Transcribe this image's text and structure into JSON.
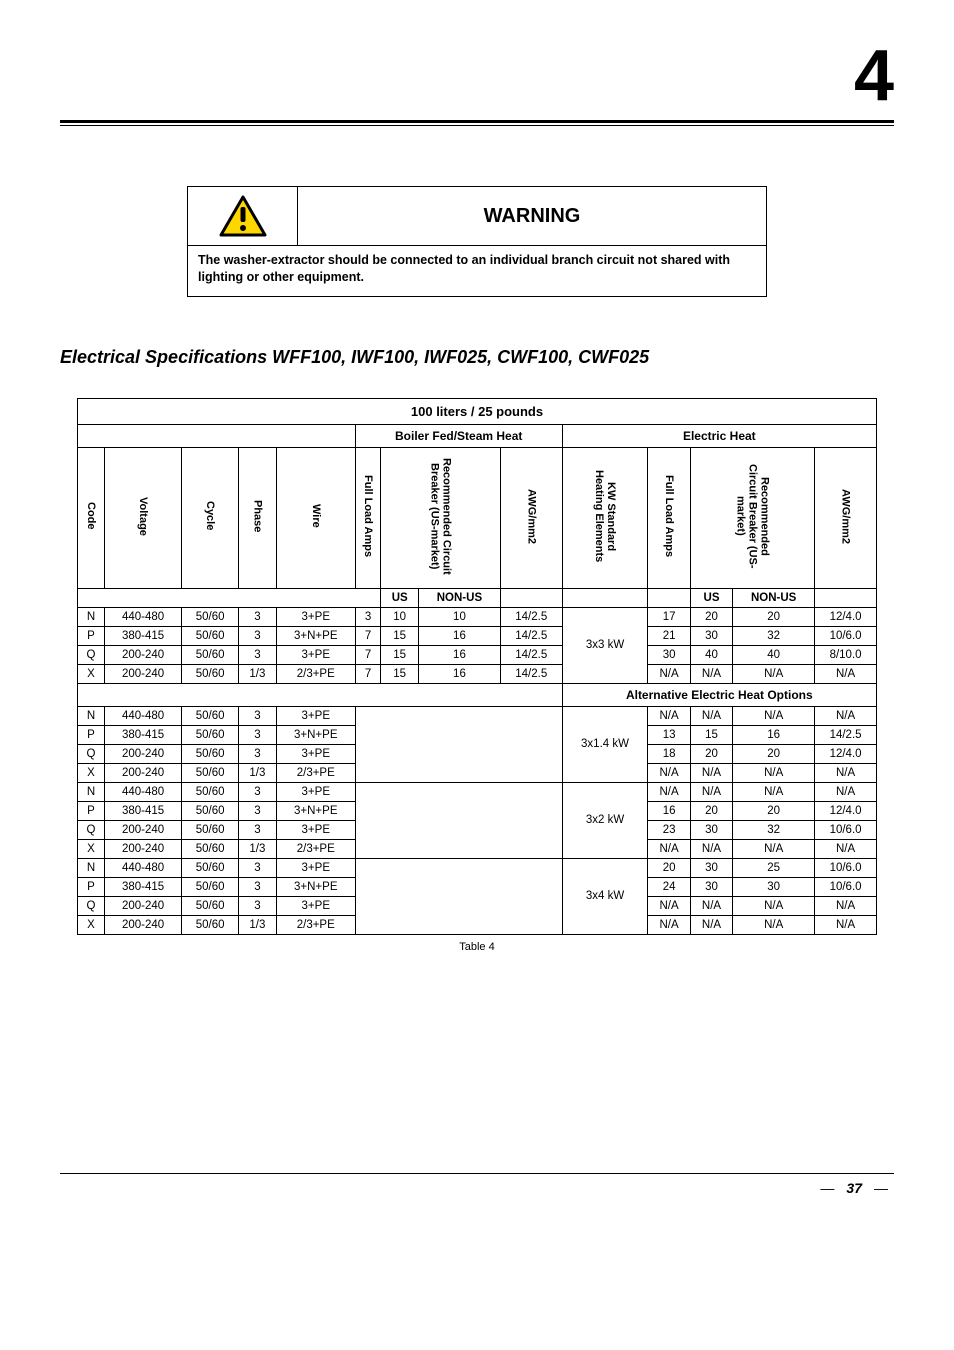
{
  "chapter_number": "4",
  "warning": {
    "title": "WARNING",
    "body": "The washer-extractor should be connected to an individual branch circuit not shared with lighting or other equipment.",
    "icon": {
      "triangle_fill": "#ffd700",
      "triangle_stroke": "#000000",
      "bang_color": "#000000"
    }
  },
  "section_title": "Electrical Specifications WFF100, IWF100, IWF025, CWF100, CWF025",
  "table": {
    "title": "100 liters / 25 pounds",
    "group_headers": [
      "Boiler Fed/Steam Heat",
      "Electric Heat"
    ],
    "col_headers": {
      "code": "Code",
      "voltage": "Voltage",
      "cycle": "Cycle",
      "phase": "Phase",
      "wire": "Wire",
      "full_load_amps": "Full Load Amps",
      "rec_circuit_bkr_us": "Recommended Circuit\nBreaker (US-market)",
      "awg_mm2": "AWG/mm2",
      "kw_std_heating": "KW Standard\nHeating Elements",
      "rec_bkr_us_market": "Recommended\nCircuit Breaker (US-\nmarket)"
    },
    "us_nonus": {
      "us": "US",
      "nonus": "NON-US"
    },
    "alt_row_label": "Alternative Electric Heat Options",
    "groups": [
      {
        "kw": "3x3 kW",
        "rows": [
          {
            "code": "N",
            "voltage": "440-480",
            "cycle": "50/60",
            "phase": "3",
            "wire": "3+PE",
            "fla_b": "3",
            "us_b": "10",
            "nonus_b": "10",
            "awg_b": "14/2.5",
            "fla_e": "17",
            "us_e": "20",
            "nonus_e": "20",
            "awg_e": "12/4.0"
          },
          {
            "code": "P",
            "voltage": "380-415",
            "cycle": "50/60",
            "phase": "3",
            "wire": "3+N+PE",
            "fla_b": "7",
            "us_b": "15",
            "nonus_b": "16",
            "awg_b": "14/2.5",
            "fla_e": "21",
            "us_e": "30",
            "nonus_e": "32",
            "awg_e": "10/6.0"
          },
          {
            "code": "Q",
            "voltage": "200-240",
            "cycle": "50/60",
            "phase": "3",
            "wire": "3+PE",
            "fla_b": "7",
            "us_b": "15",
            "nonus_b": "16",
            "awg_b": "14/2.5",
            "fla_e": "30",
            "us_e": "40",
            "nonus_e": "40",
            "awg_e": "8/10.0"
          },
          {
            "code": "X",
            "voltage": "200-240",
            "cycle": "50/60",
            "phase": "1/3",
            "wire": "2/3+PE",
            "fla_b": "7",
            "us_b": "15",
            "nonus_b": "16",
            "awg_b": "14/2.5",
            "fla_e": "N/A",
            "us_e": "N/A",
            "nonus_e": "N/A",
            "awg_e": "N/A"
          }
        ]
      },
      {
        "kw": "3x1.4 kW",
        "rows": [
          {
            "code": "N",
            "voltage": "440-480",
            "cycle": "50/60",
            "phase": "3",
            "wire": "3+PE",
            "fla_e": "N/A",
            "us_e": "N/A",
            "nonus_e": "N/A",
            "awg_e": "N/A"
          },
          {
            "code": "P",
            "voltage": "380-415",
            "cycle": "50/60",
            "phase": "3",
            "wire": "3+N+PE",
            "fla_e": "13",
            "us_e": "15",
            "nonus_e": "16",
            "awg_e": "14/2.5"
          },
          {
            "code": "Q",
            "voltage": "200-240",
            "cycle": "50/60",
            "phase": "3",
            "wire": "3+PE",
            "fla_e": "18",
            "us_e": "20",
            "nonus_e": "20",
            "awg_e": "12/4.0"
          },
          {
            "code": "X",
            "voltage": "200-240",
            "cycle": "50/60",
            "phase": "1/3",
            "wire": "2/3+PE",
            "fla_e": "N/A",
            "us_e": "N/A",
            "nonus_e": "N/A",
            "awg_e": "N/A"
          }
        ]
      },
      {
        "kw": "3x2 kW",
        "rows": [
          {
            "code": "N",
            "voltage": "440-480",
            "cycle": "50/60",
            "phase": "3",
            "wire": "3+PE",
            "fla_e": "N/A",
            "us_e": "N/A",
            "nonus_e": "N/A",
            "awg_e": "N/A"
          },
          {
            "code": "P",
            "voltage": "380-415",
            "cycle": "50/60",
            "phase": "3",
            "wire": "3+N+PE",
            "fla_e": "16",
            "us_e": "20",
            "nonus_e": "20",
            "awg_e": "12/4.0"
          },
          {
            "code": "Q",
            "voltage": "200-240",
            "cycle": "50/60",
            "phase": "3",
            "wire": "3+PE",
            "fla_e": "23",
            "us_e": "30",
            "nonus_e": "32",
            "awg_e": "10/6.0"
          },
          {
            "code": "X",
            "voltage": "200-240",
            "cycle": "50/60",
            "phase": "1/3",
            "wire": "2/3+PE",
            "fla_e": "N/A",
            "us_e": "N/A",
            "nonus_e": "N/A",
            "awg_e": "N/A"
          }
        ]
      },
      {
        "kw": "3x4 kW",
        "rows": [
          {
            "code": "N",
            "voltage": "440-480",
            "cycle": "50/60",
            "phase": "3",
            "wire": "3+PE",
            "fla_e": "20",
            "us_e": "30",
            "nonus_e": "25",
            "awg_e": "10/6.0"
          },
          {
            "code": "P",
            "voltage": "380-415",
            "cycle": "50/60",
            "phase": "3",
            "wire": "3+N+PE",
            "fla_e": "24",
            "us_e": "30",
            "nonus_e": "30",
            "awg_e": "10/6.0"
          },
          {
            "code": "Q",
            "voltage": "200-240",
            "cycle": "50/60",
            "phase": "3",
            "wire": "3+PE",
            "fla_e": "N/A",
            "us_e": "N/A",
            "nonus_e": "N/A",
            "awg_e": "N/A"
          },
          {
            "code": "X",
            "voltage": "200-240",
            "cycle": "50/60",
            "phase": "1/3",
            "wire": "2/3+PE",
            "fla_e": "N/A",
            "us_e": "N/A",
            "nonus_e": "N/A",
            "awg_e": "N/A"
          }
        ]
      }
    ],
    "caption": "Table 4"
  },
  "footer": {
    "page": "37"
  }
}
